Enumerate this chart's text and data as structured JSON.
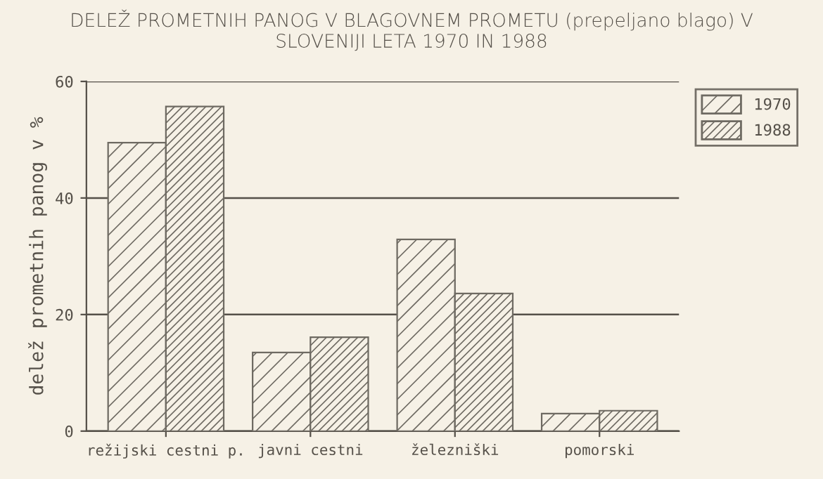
{
  "chart_data": {
    "type": "bar",
    "title": "DELEŽ PROMETNIH PANOG V BLAGOVNEM PROMETU (prepeljano blago) V\nSLOVENIJI LETA 1970 IN 1988",
    "ylabel": "delež prometnih panog v %",
    "categories": [
      "režijski cestni p.",
      "javni cestni",
      "železniški",
      "pomorski"
    ],
    "series": [
      {
        "name": "1970",
        "color": "#6e6a62",
        "values": [
          49.5,
          13.5,
          32.9,
          3.0
        ]
      },
      {
        "name": "1988",
        "color": "#6e6a62",
        "values": [
          55.7,
          16.1,
          23.6,
          3.5
        ]
      }
    ],
    "ylim": [
      0,
      60
    ],
    "yticks": [
      0,
      20,
      40,
      60
    ],
    "grid": "y",
    "legend": "top right"
  }
}
